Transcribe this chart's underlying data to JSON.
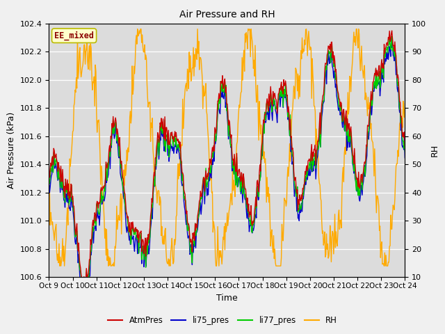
{
  "title": "Air Pressure and RH",
  "xlabel": "Time",
  "ylabel_left": "Air Pressure (kPa)",
  "ylabel_right": "RH",
  "ylim_left": [
    100.6,
    102.4
  ],
  "ylim_right": [
    10,
    100
  ],
  "yticks_left": [
    100.6,
    100.8,
    101.0,
    101.2,
    101.4,
    101.6,
    101.8,
    102.0,
    102.2,
    102.4
  ],
  "yticks_right": [
    10,
    20,
    30,
    40,
    50,
    60,
    70,
    80,
    90,
    100
  ],
  "xtick_labels": [
    "Oct 9",
    "Oct 10",
    "Oct 11",
    "Oct 12",
    "Oct 13",
    "Oct 14",
    "Oct 15",
    "Oct 16",
    "Oct 17",
    "Oct 18",
    "Oct 19",
    "Oct 20",
    "Oct 21",
    "Oct 22",
    "Oct 23",
    "Oct 24"
  ],
  "color_atm": "#cc0000",
  "color_li75": "#0000cc",
  "color_li77": "#00cc00",
  "color_rh": "#ffaa00",
  "legend_label": "EE_mixed",
  "fig_bg": "#f0f0f0",
  "plot_bg": "#dcdcdc",
  "n_points": 600,
  "seed": 7
}
